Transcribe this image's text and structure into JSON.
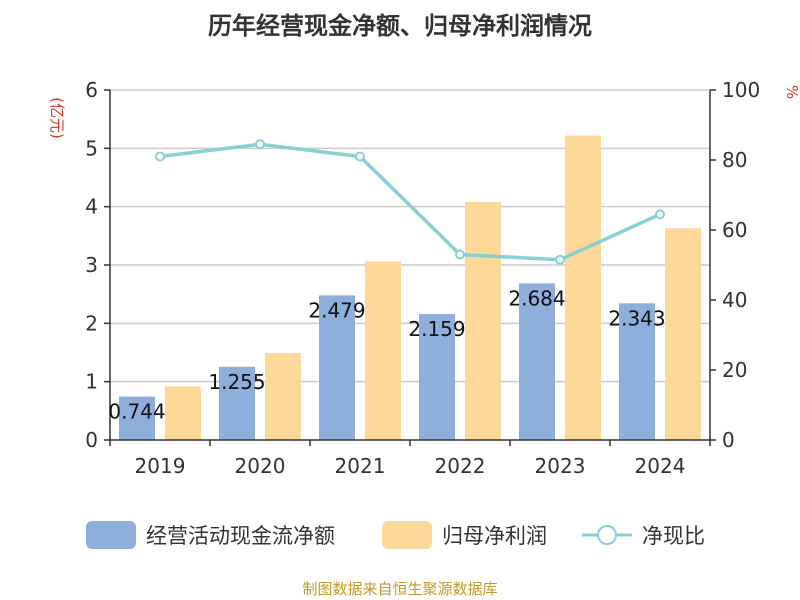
{
  "title": "历年经营现金净额、归母净利润情况",
  "footer": "制图数据来自恒生聚源数据库",
  "chart_data": {
    "type": "bar",
    "categories": [
      "2019",
      "2020",
      "2021",
      "2022",
      "2023",
      "2024"
    ],
    "series": [
      {
        "name": "经营活动现金流净额",
        "type": "bar",
        "axis": "left",
        "color": "#8eaedb",
        "values": [
          0.744,
          1.255,
          2.479,
          2.159,
          2.684,
          2.343
        ],
        "labels": [
          "0.744",
          "1.255",
          "2.479",
          "2.159",
          "2.684",
          "2.343"
        ]
      },
      {
        "name": "归母净利润",
        "type": "bar",
        "axis": "left",
        "color": "#fdd898",
        "values": [
          0.92,
          1.49,
          3.06,
          4.08,
          5.22,
          3.63
        ]
      },
      {
        "name": "净现比",
        "type": "line",
        "axis": "right",
        "color": "#86d0d6",
        "values": [
          81,
          84.5,
          81,
          53,
          51.5,
          64.5
        ]
      }
    ],
    "y_left": {
      "label": "(亿元)",
      "min": 0,
      "max": 6,
      "ticks": [
        "0",
        "1",
        "2",
        "3",
        "4",
        "5",
        "6"
      ]
    },
    "y_right": {
      "label": "%",
      "min": 0,
      "max": 100,
      "ticks": [
        "0",
        "20",
        "40",
        "60",
        "80",
        "100"
      ]
    },
    "grid": true,
    "legend": "bottom"
  }
}
